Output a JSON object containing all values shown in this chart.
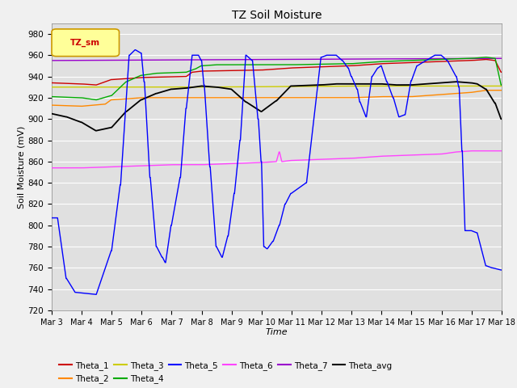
{
  "title": "TZ Soil Moisture",
  "xlabel": "Time",
  "ylabel": "Soil Moisture (mV)",
  "ylim": [
    720,
    990
  ],
  "yticks": [
    720,
    740,
    760,
    780,
    800,
    820,
    840,
    860,
    880,
    900,
    920,
    940,
    960,
    980
  ],
  "xtick_labels": [
    "Mar 3",
    "Mar 4",
    "Mar 5",
    "Mar 6",
    "Mar 7",
    "Mar 8",
    "Mar 9",
    "Mar 10",
    "Mar 11",
    "Mar 12",
    "Mar 13",
    "Mar 14",
    "Mar 15",
    "Mar 16",
    "Mar 17",
    "Mar 18"
  ],
  "legend_label": "TZ_sm",
  "colors": {
    "Theta_1": "#cc0000",
    "Theta_2": "#ff8800",
    "Theta_3": "#cccc00",
    "Theta_4": "#00aa00",
    "Theta_5": "#0000ff",
    "Theta_6": "#ff44ff",
    "Theta_7": "#9900cc",
    "Theta_avg": "#000000"
  },
  "fig_bg": "#f0f0f0",
  "plot_bg": "#e0e0e0"
}
